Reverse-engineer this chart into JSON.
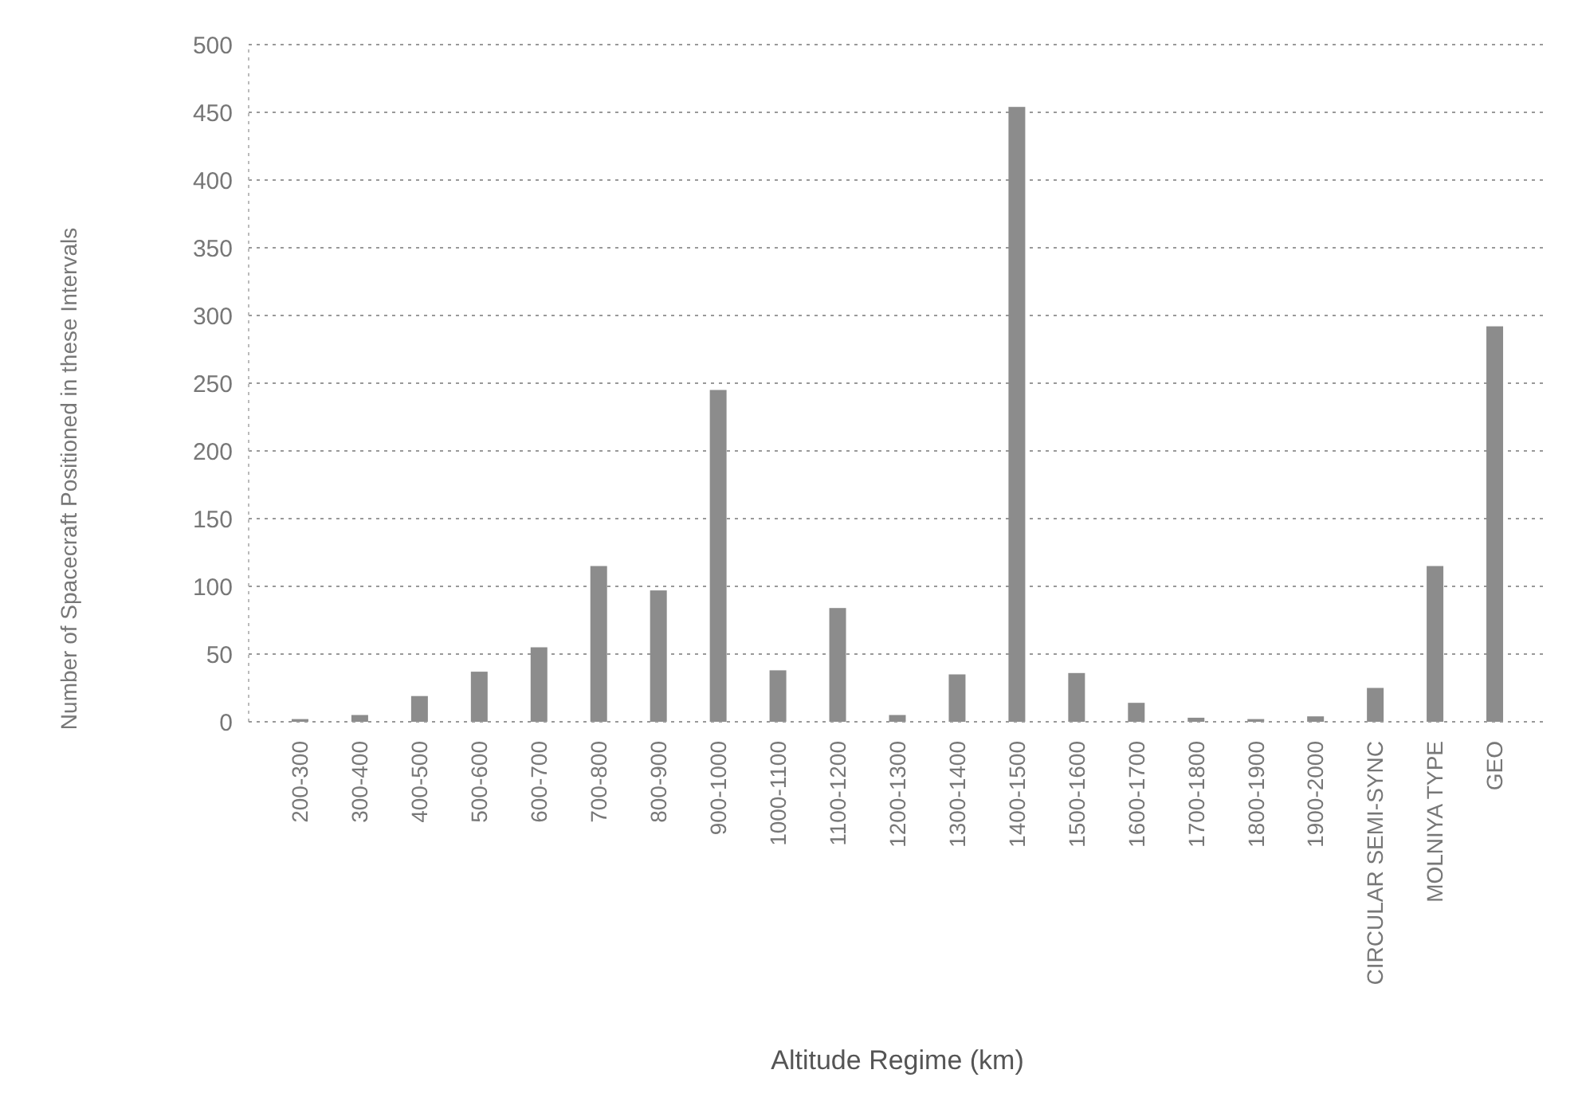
{
  "chart_data": {
    "type": "bar",
    "xlabel": "Altitude Regime (km)",
    "ylabel": "Number of Spacecraft Positioned in these Intervals",
    "categories": [
      "200-300",
      "300-400",
      "400-500",
      "500-600",
      "600-700",
      "700-800",
      "800-900",
      "900-1000",
      "1000-1100",
      "1100-1200",
      "1200-1300",
      "1300-1400",
      "1400-1500",
      "1500-1600",
      "1600-1700",
      "1700-1800",
      "1800-1900",
      "1900-2000",
      "CIRCULAR SEMI-SYNC",
      "MOLNIYA TYPE",
      "GEO"
    ],
    "values": [
      2,
      5,
      19,
      37,
      55,
      115,
      97,
      245,
      38,
      84,
      5,
      35,
      454,
      36,
      14,
      3,
      2,
      4,
      25,
      115,
      292
    ],
    "color": "#8c8c8c",
    "ylim": [
      0,
      500
    ],
    "yticks": [
      0,
      50,
      100,
      150,
      200,
      250,
      300,
      350,
      400,
      450,
      500
    ],
    "grid": "y"
  }
}
